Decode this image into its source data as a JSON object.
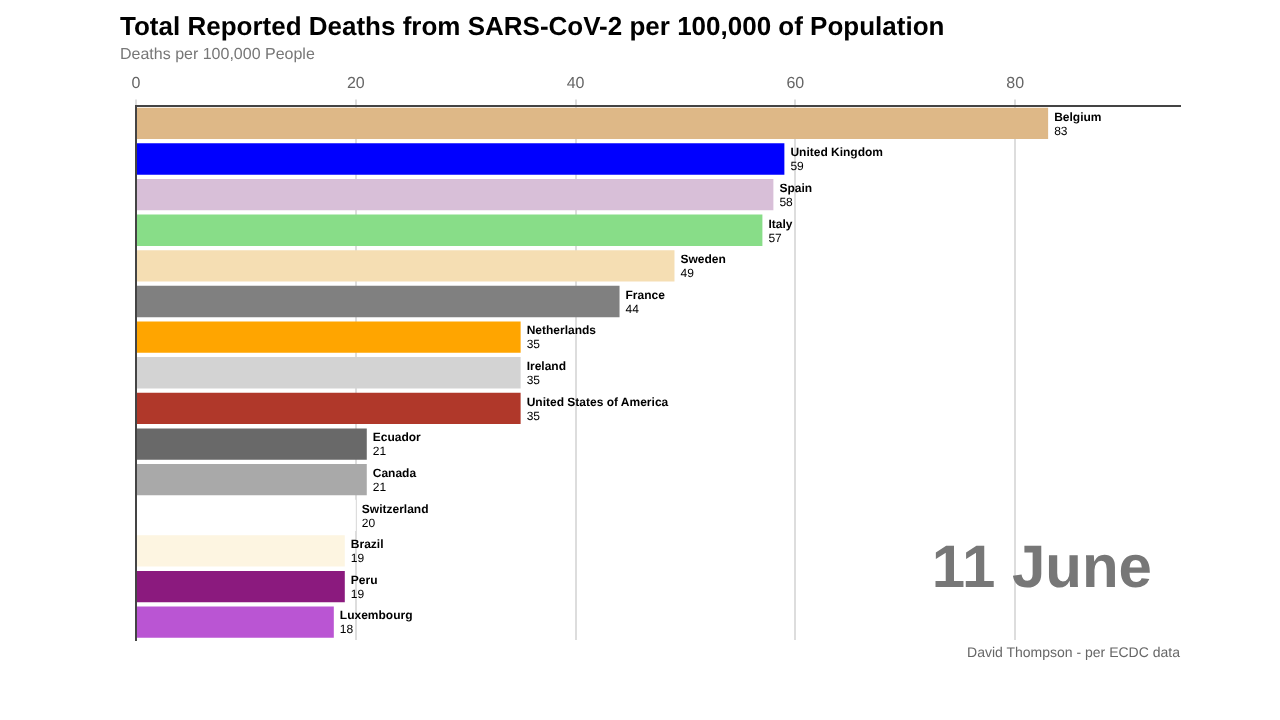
{
  "chart_data": {
    "type": "bar",
    "orientation": "horizontal",
    "title": "Total Reported Deaths from SARS-CoV-2 per 100,000 of Population",
    "subtitle": "Deaths per 100,000 People",
    "categories": [
      "Belgium",
      "United Kingdom",
      "Spain",
      "Italy",
      "Sweden",
      "France",
      "Netherlands",
      "Ireland",
      "United States of America",
      "Ecuador",
      "Canada",
      "Switzerland",
      "Brazil",
      "Peru",
      "Luxembourg"
    ],
    "values": [
      83,
      59,
      58,
      57,
      49,
      44,
      35,
      35,
      35,
      21,
      21,
      20,
      19,
      19,
      18
    ],
    "colors": [
      "#deb887",
      "#0000ff",
      "#d8bfd8",
      "#88dd88",
      "#f5deb3",
      "#808080",
      "#ffa500",
      "#d3d3d3",
      "#b0382a",
      "#696969",
      "#a9a9a9",
      "#ffffff",
      "#fdf5e1",
      "#8b1a7e",
      "#ba55d3"
    ],
    "xlim": [
      0,
      95
    ],
    "xticks": [
      0,
      20,
      40,
      60,
      80
    ],
    "grid": "x",
    "tick_labels": "x",
    "data_labels": true,
    "legend": false,
    "annotations": [
      "11 June",
      "David Thompson - per ECDC data"
    ]
  }
}
